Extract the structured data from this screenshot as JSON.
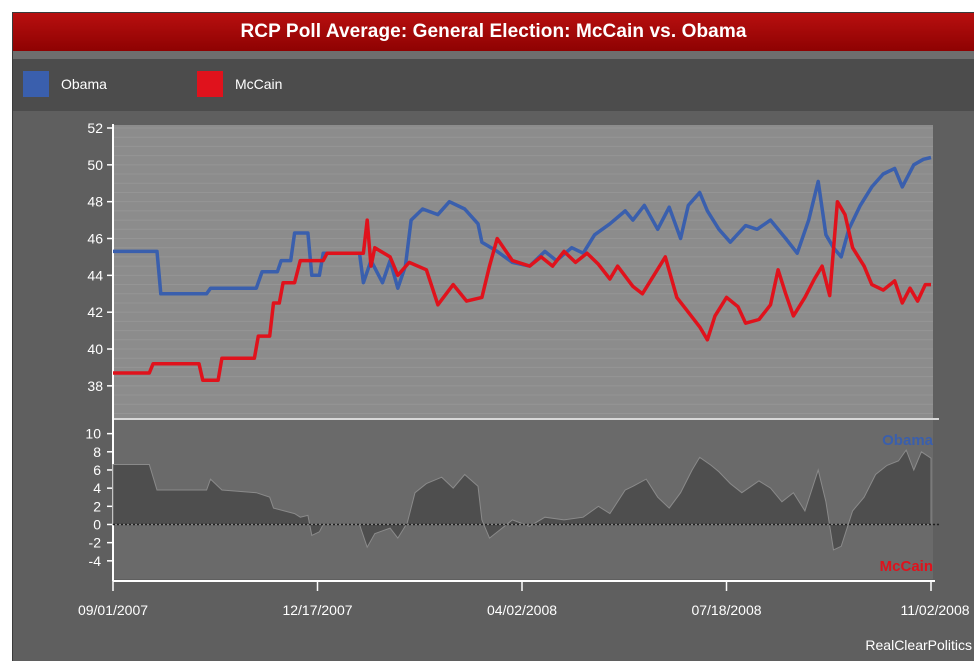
{
  "chart_data": {
    "type": "line",
    "title": "RCP Poll Average: General Election: McCain vs. Obama",
    "legend": [
      {
        "name": "Obama",
        "color": "#3a5fad"
      },
      {
        "name": "McCain",
        "color": "#e0121c"
      }
    ],
    "x_axis": {
      "tick_labels": [
        "09/01/2007",
        "12/17/2007",
        "04/02/2008",
        "07/18/2008",
        "11/02/2008"
      ],
      "range": [
        "2007-09-01",
        "2008-11-02"
      ]
    },
    "y_axis_main": {
      "ylim": [
        36.2,
        52
      ],
      "ticks": [
        38,
        40,
        42,
        44,
        46,
        48,
        50,
        52
      ]
    },
    "y_axis_spread": {
      "ylim": [
        -6,
        11.5
      ],
      "ticks": [
        10,
        8,
        6,
        4,
        2,
        0,
        -2,
        -4
      ],
      "top_label": "Obama",
      "bottom_label": "McCain"
    },
    "series": [
      {
        "name": "Obama",
        "color": "#3a5fad",
        "points": [
          [
            "2007-09-01",
            45.3
          ],
          [
            "2007-09-24",
            45.3
          ],
          [
            "2007-09-26",
            43.0
          ],
          [
            "2007-10-20",
            43.0
          ],
          [
            "2007-10-22",
            43.3
          ],
          [
            "2007-11-15",
            43.3
          ],
          [
            "2007-11-18",
            44.2
          ],
          [
            "2007-11-26",
            44.2
          ],
          [
            "2007-11-28",
            44.8
          ],
          [
            "2007-12-03",
            44.8
          ],
          [
            "2007-12-05",
            46.3
          ],
          [
            "2007-12-12",
            46.3
          ],
          [
            "2007-12-14",
            44.0
          ],
          [
            "2007-12-18",
            44.0
          ],
          [
            "2007-12-20",
            45.2
          ],
          [
            "2008-01-08",
            45.2
          ],
          [
            "2008-01-10",
            43.6
          ],
          [
            "2008-01-14",
            44.8
          ],
          [
            "2008-01-20",
            43.6
          ],
          [
            "2008-01-24",
            44.8
          ],
          [
            "2008-01-28",
            43.3
          ],
          [
            "2008-02-01",
            44.5
          ],
          [
            "2008-02-04",
            47.0
          ],
          [
            "2008-02-10",
            47.6
          ],
          [
            "2008-02-18",
            47.3
          ],
          [
            "2008-02-24",
            48.0
          ],
          [
            "2008-03-03",
            47.6
          ],
          [
            "2008-03-10",
            46.8
          ],
          [
            "2008-03-12",
            45.8
          ],
          [
            "2008-03-20",
            45.3
          ],
          [
            "2008-03-28",
            44.7
          ],
          [
            "2008-04-06",
            44.5
          ],
          [
            "2008-04-14",
            45.3
          ],
          [
            "2008-04-20",
            44.8
          ],
          [
            "2008-04-28",
            45.5
          ],
          [
            "2008-05-04",
            45.2
          ],
          [
            "2008-05-10",
            46.2
          ],
          [
            "2008-05-18",
            46.8
          ],
          [
            "2008-05-26",
            47.5
          ],
          [
            "2008-05-30",
            47.0
          ],
          [
            "2008-06-05",
            47.8
          ],
          [
            "2008-06-12",
            46.5
          ],
          [
            "2008-06-18",
            47.7
          ],
          [
            "2008-06-24",
            46.0
          ],
          [
            "2008-06-28",
            47.8
          ],
          [
            "2008-07-04",
            48.5
          ],
          [
            "2008-07-08",
            47.5
          ],
          [
            "2008-07-14",
            46.5
          ],
          [
            "2008-07-20",
            45.8
          ],
          [
            "2008-07-28",
            46.7
          ],
          [
            "2008-08-03",
            46.5
          ],
          [
            "2008-08-10",
            47.0
          ],
          [
            "2008-08-18",
            46.0
          ],
          [
            "2008-08-24",
            45.2
          ],
          [
            "2008-08-30",
            47.0
          ],
          [
            "2008-09-04",
            49.1
          ],
          [
            "2008-09-08",
            46.2
          ],
          [
            "2008-09-12",
            45.5
          ],
          [
            "2008-09-16",
            45.0
          ],
          [
            "2008-09-20",
            46.5
          ],
          [
            "2008-09-26",
            47.8
          ],
          [
            "2008-10-02",
            48.8
          ],
          [
            "2008-10-08",
            49.5
          ],
          [
            "2008-10-14",
            49.8
          ],
          [
            "2008-10-18",
            48.8
          ],
          [
            "2008-10-24",
            50.0
          ],
          [
            "2008-10-29",
            50.3
          ],
          [
            "2008-11-02",
            50.4
          ]
        ]
      },
      {
        "name": "McCain",
        "color": "#e0121c",
        "points": [
          [
            "2007-09-01",
            38.7
          ],
          [
            "2007-09-20",
            38.7
          ],
          [
            "2007-09-22",
            39.2
          ],
          [
            "2007-10-16",
            39.2
          ],
          [
            "2007-10-18",
            38.3
          ],
          [
            "2007-10-26",
            38.3
          ],
          [
            "2007-10-28",
            39.5
          ],
          [
            "2007-11-14",
            39.5
          ],
          [
            "2007-11-16",
            40.7
          ],
          [
            "2007-11-22",
            40.7
          ],
          [
            "2007-11-24",
            42.5
          ],
          [
            "2007-11-27",
            42.5
          ],
          [
            "2007-11-29",
            43.6
          ],
          [
            "2007-12-05",
            43.6
          ],
          [
            "2007-12-08",
            44.8
          ],
          [
            "2007-12-20",
            44.8
          ],
          [
            "2007-12-22",
            45.2
          ],
          [
            "2008-01-10",
            45.2
          ],
          [
            "2008-01-12",
            47.0
          ],
          [
            "2008-01-14",
            44.5
          ],
          [
            "2008-01-16",
            45.5
          ],
          [
            "2008-01-24",
            45.0
          ],
          [
            "2008-01-28",
            44.0
          ],
          [
            "2008-02-03",
            44.7
          ],
          [
            "2008-02-12",
            44.3
          ],
          [
            "2008-02-18",
            42.4
          ],
          [
            "2008-02-26",
            43.5
          ],
          [
            "2008-03-04",
            42.6
          ],
          [
            "2008-03-12",
            42.8
          ],
          [
            "2008-03-16",
            44.5
          ],
          [
            "2008-03-20",
            46.0
          ],
          [
            "2008-03-28",
            44.8
          ],
          [
            "2008-04-06",
            44.5
          ],
          [
            "2008-04-12",
            45.0
          ],
          [
            "2008-04-18",
            44.5
          ],
          [
            "2008-04-24",
            45.3
          ],
          [
            "2008-04-30",
            44.7
          ],
          [
            "2008-05-06",
            45.2
          ],
          [
            "2008-05-12",
            44.6
          ],
          [
            "2008-05-18",
            43.8
          ],
          [
            "2008-05-22",
            44.5
          ],
          [
            "2008-05-30",
            43.4
          ],
          [
            "2008-06-04",
            43.0
          ],
          [
            "2008-06-10",
            44.0
          ],
          [
            "2008-06-16",
            45.0
          ],
          [
            "2008-06-22",
            42.8
          ],
          [
            "2008-06-28",
            42.0
          ],
          [
            "2008-07-04",
            41.2
          ],
          [
            "2008-07-08",
            40.5
          ],
          [
            "2008-07-12",
            41.8
          ],
          [
            "2008-07-18",
            42.8
          ],
          [
            "2008-07-24",
            42.3
          ],
          [
            "2008-07-28",
            41.4
          ],
          [
            "2008-08-04",
            41.6
          ],
          [
            "2008-08-10",
            42.4
          ],
          [
            "2008-08-14",
            44.3
          ],
          [
            "2008-08-18",
            43.0
          ],
          [
            "2008-08-22",
            41.8
          ],
          [
            "2008-08-28",
            42.8
          ],
          [
            "2008-09-02",
            43.8
          ],
          [
            "2008-09-06",
            44.5
          ],
          [
            "2008-09-10",
            42.9
          ],
          [
            "2008-09-14",
            48.0
          ],
          [
            "2008-09-18",
            47.3
          ],
          [
            "2008-09-22",
            45.5
          ],
          [
            "2008-09-28",
            44.5
          ],
          [
            "2008-10-02",
            43.5
          ],
          [
            "2008-10-08",
            43.2
          ],
          [
            "2008-10-14",
            43.7
          ],
          [
            "2008-10-18",
            42.5
          ],
          [
            "2008-10-22",
            43.3
          ],
          [
            "2008-10-26",
            42.6
          ],
          [
            "2008-10-30",
            43.5
          ],
          [
            "2008-11-02",
            43.5
          ]
        ]
      },
      {
        "name": "Spread",
        "color": "#707070",
        "points": [
          [
            "2007-09-01",
            6.6
          ],
          [
            "2007-09-20",
            6.6
          ],
          [
            "2007-09-24",
            3.8
          ],
          [
            "2007-10-20",
            3.8
          ],
          [
            "2007-10-22",
            5.0
          ],
          [
            "2007-10-28",
            3.8
          ],
          [
            "2007-11-15",
            3.5
          ],
          [
            "2007-11-22",
            3.0
          ],
          [
            "2007-11-24",
            1.8
          ],
          [
            "2007-12-05",
            1.2
          ],
          [
            "2007-12-08",
            0.8
          ],
          [
            "2007-12-12",
            1.0
          ],
          [
            "2007-12-14",
            -1.2
          ],
          [
            "2007-12-18",
            -0.8
          ],
          [
            "2007-12-20",
            0.0
          ],
          [
            "2008-01-08",
            0.0
          ],
          [
            "2008-01-12",
            -2.5
          ],
          [
            "2008-01-16",
            -1.0
          ],
          [
            "2008-01-24",
            -0.4
          ],
          [
            "2008-01-28",
            -1.5
          ],
          [
            "2008-02-02",
            0.2
          ],
          [
            "2008-02-06",
            3.5
          ],
          [
            "2008-02-12",
            4.5
          ],
          [
            "2008-02-20",
            5.2
          ],
          [
            "2008-02-26",
            4.0
          ],
          [
            "2008-03-03",
            5.5
          ],
          [
            "2008-03-10",
            4.2
          ],
          [
            "2008-03-12",
            0.5
          ],
          [
            "2008-03-16",
            -1.5
          ],
          [
            "2008-03-22",
            -0.5
          ],
          [
            "2008-03-28",
            0.5
          ],
          [
            "2008-04-06",
            -0.2
          ],
          [
            "2008-04-14",
            0.8
          ],
          [
            "2008-04-24",
            0.5
          ],
          [
            "2008-05-04",
            0.8
          ],
          [
            "2008-05-12",
            2.0
          ],
          [
            "2008-05-18",
            1.2
          ],
          [
            "2008-05-26",
            3.8
          ],
          [
            "2008-05-30",
            4.2
          ],
          [
            "2008-06-06",
            5.0
          ],
          [
            "2008-06-12",
            3.0
          ],
          [
            "2008-06-18",
            1.8
          ],
          [
            "2008-06-24",
            3.5
          ],
          [
            "2008-06-30",
            6.0
          ],
          [
            "2008-07-04",
            7.4
          ],
          [
            "2008-07-10",
            6.5
          ],
          [
            "2008-07-14",
            5.8
          ],
          [
            "2008-07-20",
            4.5
          ],
          [
            "2008-07-26",
            3.5
          ],
          [
            "2008-08-04",
            4.8
          ],
          [
            "2008-08-10",
            4.0
          ],
          [
            "2008-08-16",
            2.5
          ],
          [
            "2008-08-22",
            3.5
          ],
          [
            "2008-08-28",
            1.5
          ],
          [
            "2008-09-04",
            6.0
          ],
          [
            "2008-09-08",
            2.5
          ],
          [
            "2008-09-12",
            -2.8
          ],
          [
            "2008-09-16",
            -2.4
          ],
          [
            "2008-09-22",
            1.5
          ],
          [
            "2008-09-28",
            3.0
          ],
          [
            "2008-10-04",
            5.5
          ],
          [
            "2008-10-10",
            6.5
          ],
          [
            "2008-10-16",
            7.0
          ],
          [
            "2008-10-20",
            8.2
          ],
          [
            "2008-10-24",
            6.0
          ],
          [
            "2008-10-28",
            8.0
          ],
          [
            "2008-11-02",
            7.3
          ]
        ]
      }
    ]
  },
  "attribution": "RealClearPolitics"
}
